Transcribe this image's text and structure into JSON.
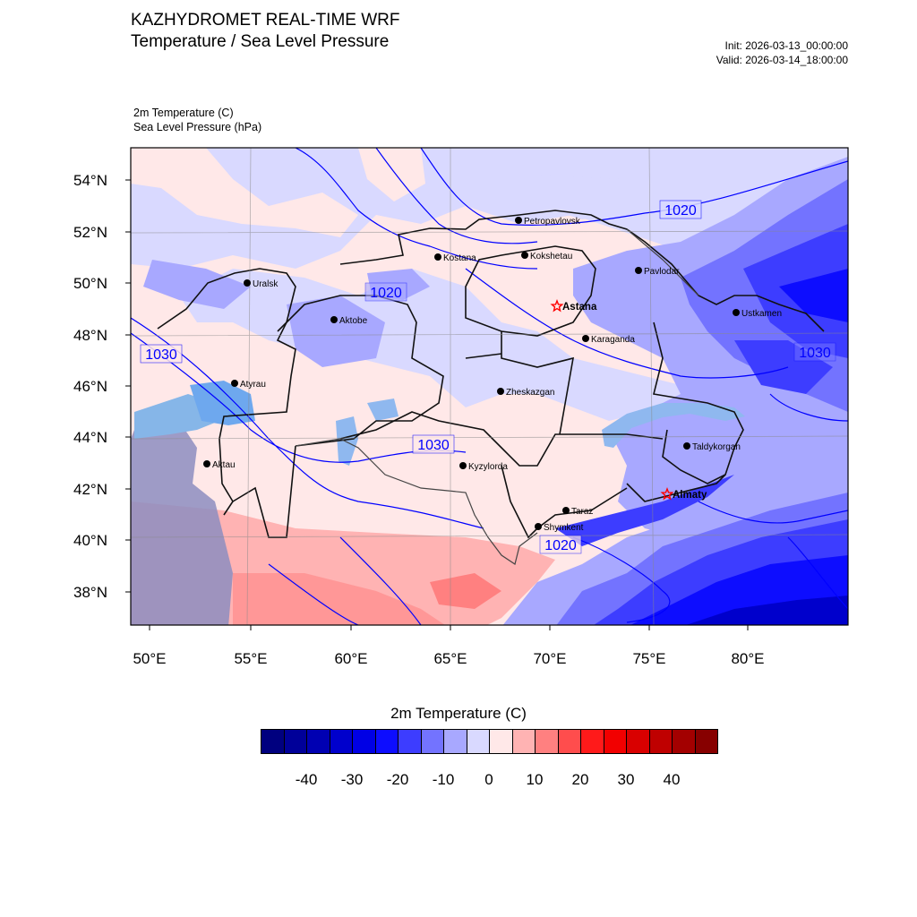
{
  "header": {
    "title": "KAZHYDROMET REAL-TIME WRF",
    "subtitle": "Temperature / Sea Level Pressure",
    "init": "Init: 2026-03-13_00:00:00",
    "valid": "Valid: 2026-03-14_18:00:00"
  },
  "fields": {
    "temperature": "2m Temperature   (C)",
    "pressure": "Sea Level Pressure   (hPa)"
  },
  "axes": {
    "lat_labels": [
      "54°N",
      "52°N",
      "50°N",
      "48°N",
      "46°N",
      "44°N",
      "42°N",
      "40°N",
      "38°N"
    ],
    "lon_labels": [
      "50°E",
      "55°E",
      "60°E",
      "65°E",
      "70°E",
      "75°E",
      "80°E"
    ]
  },
  "cities": [
    {
      "name": "Petropavlovsk",
      "lon": 69.1,
      "lat": 54.9,
      "capital": false
    },
    {
      "name": "Kostana",
      "lon": 63.6,
      "lat": 53.2,
      "capital": false
    },
    {
      "name": "Kokshetau",
      "lon": 69.4,
      "lat": 53.3,
      "capital": false
    },
    {
      "name": "Pavlodar",
      "lon": 76.9,
      "lat": 52.3,
      "capital": false
    },
    {
      "name": "Uralsk",
      "lon": 51.4,
      "lat": 51.2,
      "capital": false
    },
    {
      "name": "Astana",
      "lon": 71.4,
      "lat": 51.2,
      "capital": true
    },
    {
      "name": "Aktobe",
      "lon": 57.2,
      "lat": 50.3,
      "capital": false
    },
    {
      "name": "Ustkamen",
      "lon": 82.6,
      "lat": 49.9,
      "capital": false
    },
    {
      "name": "Karaganda",
      "lon": 73.1,
      "lat": 49.8,
      "capital": false
    },
    {
      "name": "Atyrau",
      "lon": 51.9,
      "lat": 47.1,
      "capital": false
    },
    {
      "name": "Zheskazgan",
      "lon": 67.7,
      "lat": 47.8,
      "capital": false
    },
    {
      "name": "Taldykorgan",
      "lon": 78.4,
      "lat": 45.0,
      "capital": false
    },
    {
      "name": "Aktau",
      "lon": 51.2,
      "lat": 43.6,
      "capital": false
    },
    {
      "name": "Kyzylorda",
      "lon": 65.5,
      "lat": 44.8,
      "capital": false
    },
    {
      "name": "Almaty",
      "lon": 76.9,
      "lat": 43.2,
      "capital": true
    },
    {
      "name": "Taraz",
      "lon": 71.4,
      "lat": 42.9,
      "capital": false
    },
    {
      "name": "Shymkent",
      "lon": 69.6,
      "lat": 42.3,
      "capital": false
    }
  ],
  "isobar_labels": [
    "1020",
    "1020",
    "1030",
    "1030",
    "1030",
    "1020"
  ],
  "colorbar": {
    "title": "2m Temperature  (C)",
    "ticks": [
      "-40",
      "-30",
      "-20",
      "-10",
      "0",
      "10",
      "20",
      "30",
      "40"
    ],
    "colors": [
      "#00007f",
      "#000099",
      "#0000b2",
      "#0000cc",
      "#0000e5",
      "#0d0dff",
      "#3d3dff",
      "#7373ff",
      "#a8a8ff",
      "#d9d9ff",
      "#ffe8e8",
      "#ffb3b3",
      "#ff8080",
      "#ff4d4d",
      "#ff1a1a",
      "#f20000",
      "#d90000",
      "#bf0000",
      "#a30000",
      "#870000"
    ]
  }
}
